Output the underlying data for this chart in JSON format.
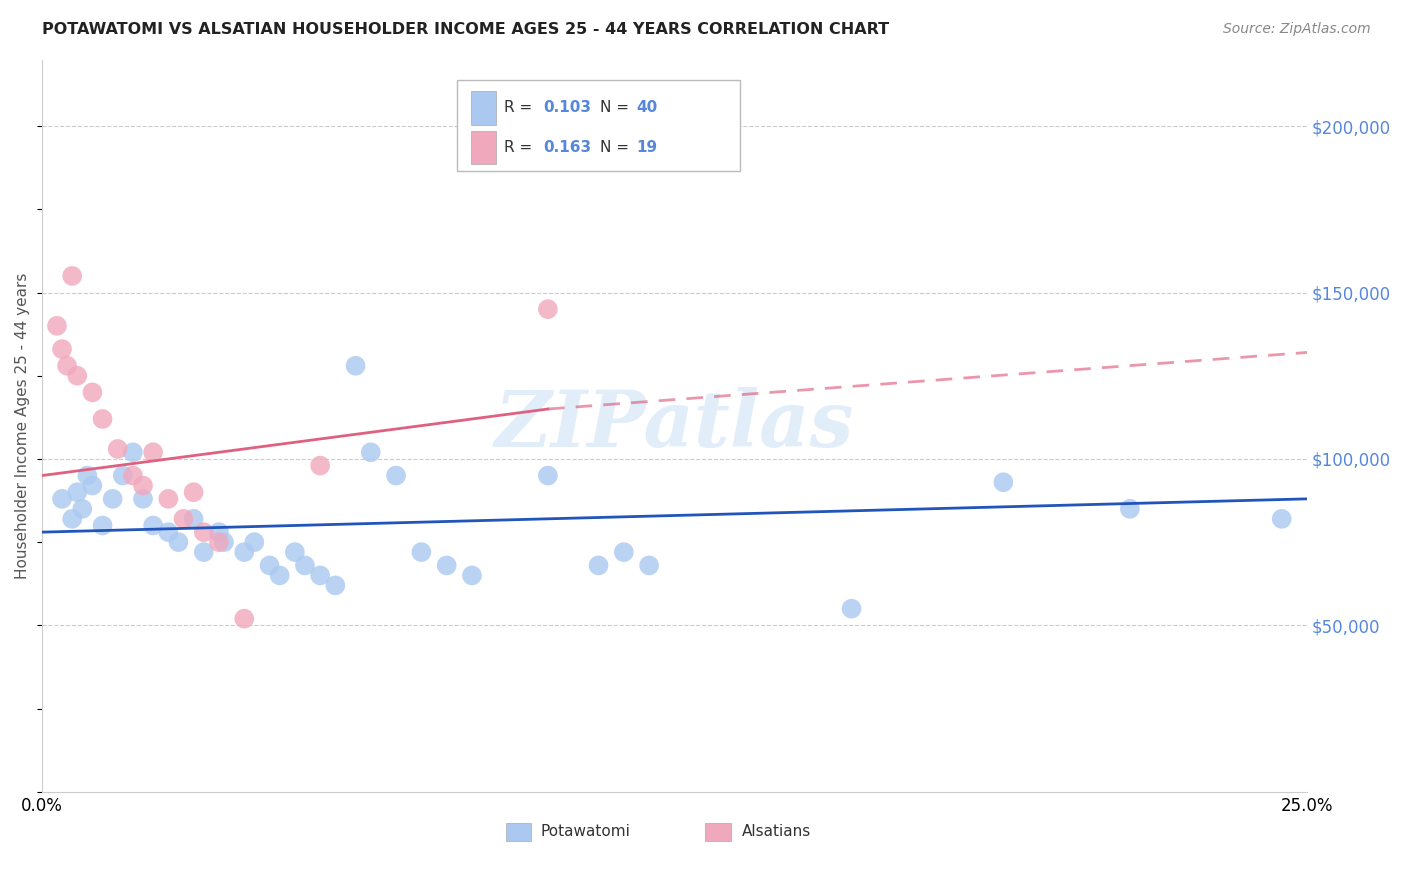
{
  "title": "POTAWATOMI VS ALSATIAN HOUSEHOLDER INCOME AGES 25 - 44 YEARS CORRELATION CHART",
  "source": "Source: ZipAtlas.com",
  "ylabel": "Householder Income Ages 25 - 44 years",
  "xlim": [
    0.0,
    0.25
  ],
  "ylim": [
    0,
    220000
  ],
  "xticks": [
    0.0,
    0.05,
    0.1,
    0.15,
    0.2,
    0.25
  ],
  "xticklabels": [
    "0.0%",
    "",
    "",
    "",
    "",
    "25.0%"
  ],
  "ytick_labels_right": [
    "$200,000",
    "$150,000",
    "$100,000",
    "$50,000"
  ],
  "ytick_values_right": [
    200000,
    150000,
    100000,
    50000
  ],
  "blue_color": "#aac8f0",
  "pink_color": "#f0a8bc",
  "blue_line_color": "#2255bb",
  "pink_line_color": "#e06080",
  "blue_scatter": [
    [
      0.004,
      88000
    ],
    [
      0.006,
      82000
    ],
    [
      0.007,
      90000
    ],
    [
      0.008,
      85000
    ],
    [
      0.009,
      95000
    ],
    [
      0.01,
      92000
    ],
    [
      0.012,
      80000
    ],
    [
      0.014,
      88000
    ],
    [
      0.016,
      95000
    ],
    [
      0.018,
      102000
    ],
    [
      0.02,
      88000
    ],
    [
      0.022,
      80000
    ],
    [
      0.025,
      78000
    ],
    [
      0.027,
      75000
    ],
    [
      0.03,
      82000
    ],
    [
      0.032,
      72000
    ],
    [
      0.035,
      78000
    ],
    [
      0.036,
      75000
    ],
    [
      0.04,
      72000
    ],
    [
      0.042,
      75000
    ],
    [
      0.045,
      68000
    ],
    [
      0.047,
      65000
    ],
    [
      0.05,
      72000
    ],
    [
      0.052,
      68000
    ],
    [
      0.055,
      65000
    ],
    [
      0.058,
      62000
    ],
    [
      0.062,
      128000
    ],
    [
      0.065,
      102000
    ],
    [
      0.07,
      95000
    ],
    [
      0.075,
      72000
    ],
    [
      0.08,
      68000
    ],
    [
      0.085,
      65000
    ],
    [
      0.1,
      95000
    ],
    [
      0.11,
      68000
    ],
    [
      0.115,
      72000
    ],
    [
      0.12,
      68000
    ],
    [
      0.16,
      55000
    ],
    [
      0.19,
      93000
    ],
    [
      0.215,
      85000
    ],
    [
      0.245,
      82000
    ]
  ],
  "pink_scatter": [
    [
      0.003,
      140000
    ],
    [
      0.004,
      133000
    ],
    [
      0.005,
      128000
    ],
    [
      0.006,
      155000
    ],
    [
      0.007,
      125000
    ],
    [
      0.01,
      120000
    ],
    [
      0.012,
      112000
    ],
    [
      0.015,
      103000
    ],
    [
      0.018,
      95000
    ],
    [
      0.02,
      92000
    ],
    [
      0.022,
      102000
    ],
    [
      0.025,
      88000
    ],
    [
      0.028,
      82000
    ],
    [
      0.03,
      90000
    ],
    [
      0.032,
      78000
    ],
    [
      0.035,
      75000
    ],
    [
      0.04,
      52000
    ],
    [
      0.055,
      98000
    ],
    [
      0.1,
      145000
    ]
  ],
  "legend_r_blue": "0.103",
  "legend_n_blue": "40",
  "legend_r_pink": "0.163",
  "legend_n_pink": "19",
  "legend_label_blue": "Potawatomi",
  "legend_label_pink": "Alsatians",
  "watermark": "ZIPatlas",
  "background_color": "#ffffff",
  "grid_color": "#cccccc"
}
